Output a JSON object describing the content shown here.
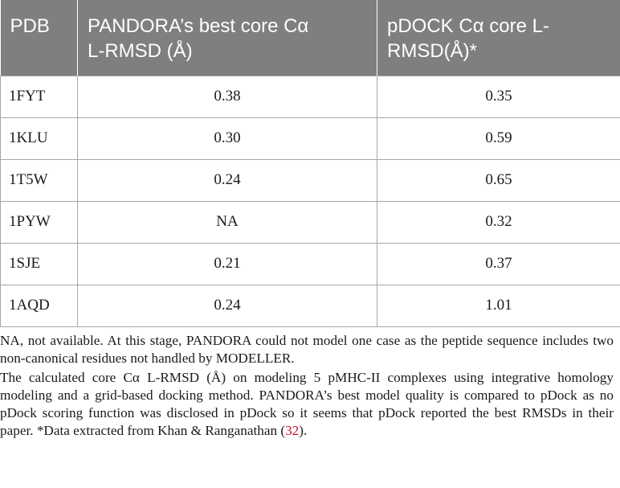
{
  "table": {
    "headers": {
      "pdb": "PDB",
      "pandora_line1": "PANDORA’s best core Cα",
      "pandora_line2": "L-RMSD (Å)",
      "pdock_line1": "pDOCK Cα core L-",
      "pdock_line2": "RMSD(Å)*"
    },
    "rows": [
      {
        "pdb": "1FYT",
        "pandora": "0.38",
        "pdock": "0.35"
      },
      {
        "pdb": "1KLU",
        "pandora": "0.30",
        "pdock": "0.59"
      },
      {
        "pdb": "1T5W",
        "pandora": "0.24",
        "pdock": "0.65"
      },
      {
        "pdb": "1PYW",
        "pandora": "NA",
        "pdock": "0.32"
      },
      {
        "pdb": "1SJE",
        "pandora": "0.21",
        "pdock": "0.37"
      },
      {
        "pdb": "1AQD",
        "pandora": "0.24",
        "pdock": "1.01"
      }
    ]
  },
  "footnotes": {
    "note1": "NA, not available. At this stage, PANDORA could not model one case as the peptide sequence includes two non-canonical residues not handled by MODELLER.",
    "note2_text": "The calculated core Cα L-RMSD (Å) on modeling 5 pMHC-II complexes using integrative homology modeling and a grid-based docking method. PANDORA’s best model quality is compared to pDock as no pDock scoring function was disclosed in pDock so it seems that pDock reported the best RMSDs in their paper. *Data extracted from Khan & Ranganathan (",
    "note2_ref": "32",
    "note2_end": ")."
  },
  "colors": {
    "header_bg": "#7f7f7f",
    "header_text": "#ffffff",
    "grid_line": "#a6a6a6",
    "reference_link": "#c8102e"
  }
}
